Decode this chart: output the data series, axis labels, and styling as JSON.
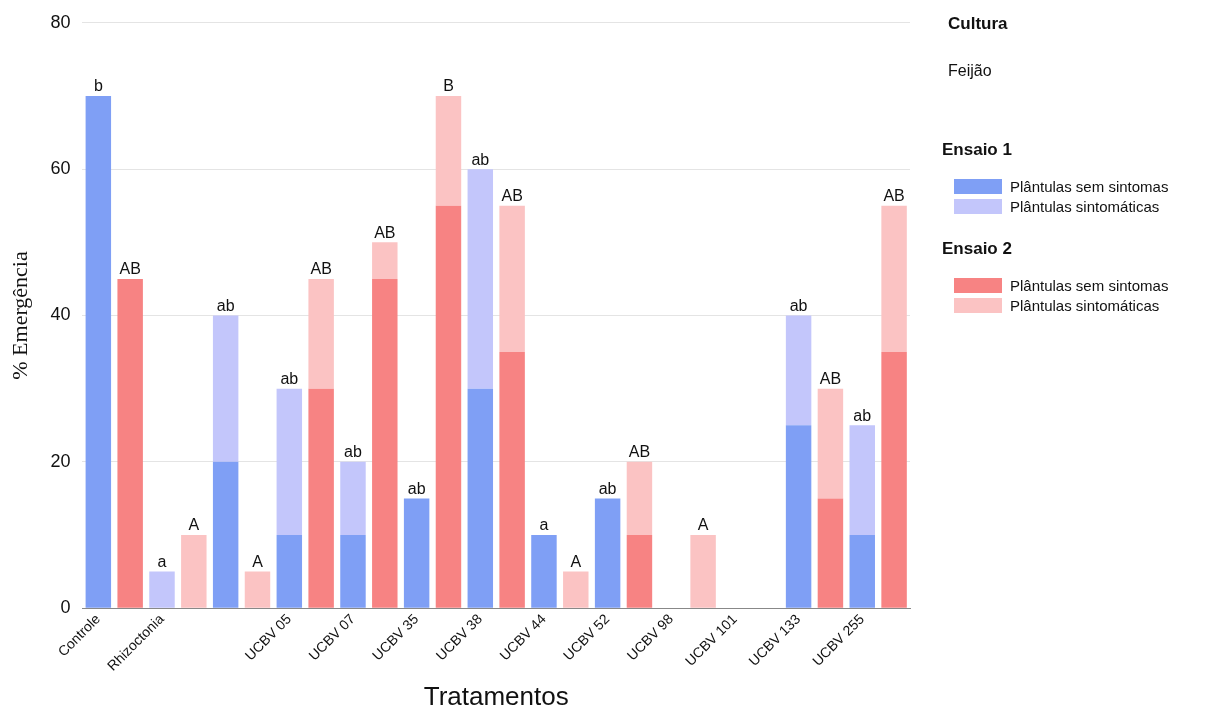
{
  "chart_data": {
    "type": "bar",
    "stacked": true,
    "xlabel": "Tratamentos",
    "ylabel": "% Emergência",
    "legend_title": "Cultura",
    "legend": "right",
    "annotations": [
      "Feijão",
      "Ensaio 1",
      "Ensaio 2"
    ],
    "categories": [
      "Controle",
      null,
      "Rhizoctonia",
      null,
      null,
      null,
      "UCBV 05",
      null,
      "UCBV 07",
      null,
      "UCBV 35",
      null,
      "UCBV 38",
      null,
      "UCBV 44",
      null,
      "UCBV 52",
      null,
      "UCBV 98",
      null,
      "UCBV 101",
      null,
      "UCBV 133",
      null,
      "UCBV 255",
      null
    ],
    "series": [
      {
        "name": "Plântulas sem sintomas",
        "color": "#7f9ff5",
        "values": [
          70,
          null,
          0,
          null,
          20,
          null,
          10,
          null,
          10,
          null,
          15,
          null,
          30,
          null,
          10,
          null,
          15,
          null,
          0,
          null,
          0,
          null,
          25,
          null,
          10,
          null
        ]
      },
      {
        "name": "Plântulas sintomáticas",
        "color": "#c3c6fb",
        "values": [
          0,
          null,
          5,
          null,
          20,
          null,
          20,
          null,
          10,
          null,
          0,
          null,
          30,
          null,
          0,
          null,
          0,
          null,
          0,
          null,
          0,
          null,
          15,
          null,
          15,
          null
        ],
        "value_labels": [
          "b",
          null,
          "a",
          null,
          "ab",
          null,
          "ab",
          null,
          "ab",
          null,
          "ab",
          null,
          "ab",
          null,
          "a",
          null,
          "ab",
          null,
          null,
          null,
          null,
          null,
          "ab",
          null,
          "ab",
          null
        ]
      },
      {
        "name": "Plântulas sem sintomas",
        "color": "#f78383",
        "values": [
          null,
          45,
          null,
          0,
          null,
          0,
          null,
          30,
          null,
          45,
          null,
          55,
          null,
          35,
          null,
          0,
          null,
          10,
          null,
          0,
          null,
          0,
          null,
          15,
          null,
          35
        ]
      },
      {
        "name": "Plântulas sintomáticas",
        "color": "#fbc3c3",
        "values": [
          null,
          0,
          null,
          10,
          null,
          5,
          null,
          15,
          null,
          5,
          null,
          15,
          null,
          20,
          null,
          5,
          null,
          10,
          null,
          10,
          null,
          0,
          null,
          15,
          null,
          20
        ],
        "value_labels": [
          null,
          "AB",
          null,
          "A",
          null,
          "A",
          null,
          "AB",
          null,
          "AB",
          null,
          "B",
          null,
          "AB",
          null,
          "A",
          null,
          "AB",
          null,
          "A",
          null,
          null,
          null,
          "AB",
          null,
          "AB"
        ]
      }
    ],
    "ylim": [
      0,
      80
    ],
    "yticks": [
      0,
      20,
      40,
      60,
      80
    ],
    "grid": "y"
  }
}
